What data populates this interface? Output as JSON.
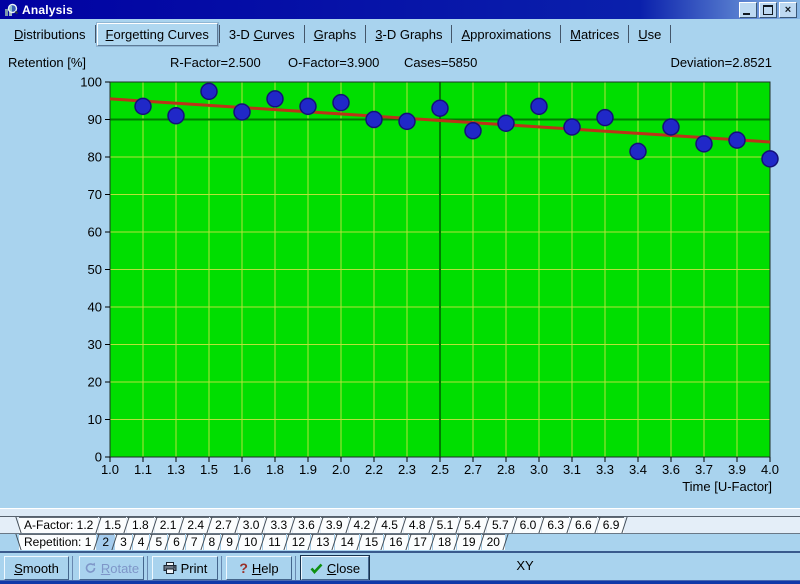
{
  "window": {
    "title": "Analysis",
    "controls": [
      {
        "name": "minimize",
        "glyph": "_"
      },
      {
        "name": "maximize",
        "glyph": "box"
      },
      {
        "name": "close",
        "glyph": "×"
      }
    ]
  },
  "tabs": {
    "selected": "Forgetting Curves",
    "items": [
      {
        "label": "Distributions",
        "underline": 0
      },
      {
        "label": "Forgetting Curves",
        "underline": 0
      },
      {
        "label": "3-D Curves",
        "underline": 4
      },
      {
        "label": "Graphs",
        "underline": 0
      },
      {
        "label": "3-D Graphs",
        "underline": 0
      },
      {
        "label": "Approximations",
        "underline": 0
      },
      {
        "label": "Matrices",
        "underline": 0
      },
      {
        "label": "Use",
        "underline": 0
      }
    ]
  },
  "header": {
    "retention_label": "Retention [%]",
    "r_factor": "R-Factor=2.500",
    "o_factor": "O-Factor=3.900",
    "cases": "Cases=5850",
    "deviation": "Deviation=2.8521"
  },
  "chart_data": {
    "type": "scatter",
    "xlabel": "Time [U-Factor]",
    "ylabel": "Retention [%]",
    "ylim": [
      0,
      100
    ],
    "y_tick_step": 10,
    "grid": true,
    "x_tick_labels": [
      "1.0",
      "1.1",
      "1.3",
      "1.5",
      "1.6",
      "1.8",
      "1.9",
      "2.0",
      "2.2",
      "2.3",
      "2.5",
      "2.7",
      "2.8",
      "3.0",
      "3.1",
      "3.3",
      "3.4",
      "3.6",
      "3.7",
      "3.9",
      "4.0"
    ],
    "points": [
      {
        "x": "1.1",
        "y": 93.5
      },
      {
        "x": "1.3",
        "y": 91
      },
      {
        "x": "1.5",
        "y": 97.5
      },
      {
        "x": "1.6",
        "y": 92
      },
      {
        "x": "1.8",
        "y": 95.5
      },
      {
        "x": "1.9",
        "y": 93.5
      },
      {
        "x": "2.0",
        "y": 94.5
      },
      {
        "x": "2.2",
        "y": 90
      },
      {
        "x": "2.3",
        "y": 89.5
      },
      {
        "x": "2.5",
        "y": 93
      },
      {
        "x": "2.7",
        "y": 87
      },
      {
        "x": "2.8",
        "y": 89
      },
      {
        "x": "3.0",
        "y": 93.5
      },
      {
        "x": "3.1",
        "y": 88
      },
      {
        "x": "3.3",
        "y": 90.5
      },
      {
        "x": "3.4",
        "y": 81.5
      },
      {
        "x": "3.6",
        "y": 88
      },
      {
        "x": "3.7",
        "y": 83.5
      },
      {
        "x": "3.9",
        "y": 84.5
      },
      {
        "x": "4.0",
        "y": 79.5
      }
    ],
    "trend_line": {
      "x_start": "1.0",
      "y_start": 95.5,
      "x_end": "4.0",
      "y_end": 84.0
    },
    "reference_lines": {
      "horizontal_y": 90,
      "vertical_x": "2.5"
    },
    "colors": {
      "plot_bg": "#00DE00",
      "grid": "#B5E23B",
      "reference": "#007C00",
      "trend": "#BB3418",
      "point_fill": "#2028C8",
      "point_stroke": "#141078",
      "axis": "#1E3226",
      "text": "#000000"
    }
  },
  "afactor_strip": {
    "items": [
      "A-Factor: 1.2",
      "1.5",
      "1.8",
      "2.1",
      "2.4",
      "2.7",
      "3.0",
      "3.3",
      "3.6",
      "3.9",
      "4.2",
      "4.5",
      "4.8",
      "5.1",
      "5.4",
      "5.7",
      "6.0",
      "6.3",
      "6.6",
      "6.9"
    ],
    "selected_index": null
  },
  "repetition_strip": {
    "items": [
      "Repetition: 1",
      "2",
      "3",
      "4",
      "5",
      "6",
      "7",
      "8",
      "9",
      "10",
      "11",
      "12",
      "13",
      "14",
      "15",
      "16",
      "17",
      "18",
      "19",
      "20"
    ],
    "selected_index": 1
  },
  "buttons": [
    {
      "id": "smooth",
      "label": "Smooth",
      "underline": 0,
      "icon": null,
      "disabled": false,
      "default": false
    },
    {
      "id": "rotate",
      "label": "Rotate",
      "underline": 0,
      "icon": "rotate",
      "disabled": true,
      "default": false
    },
    {
      "id": "print",
      "label": "Print",
      "underline": null,
      "icon": "printer",
      "disabled": false,
      "default": false
    },
    {
      "id": "help",
      "label": "Help",
      "underline": 0,
      "icon": "question",
      "disabled": false,
      "default": false
    },
    {
      "id": "close",
      "label": "Close",
      "underline": 0,
      "icon": "check",
      "disabled": false,
      "default": true
    }
  ],
  "status": {
    "text": "XY"
  }
}
